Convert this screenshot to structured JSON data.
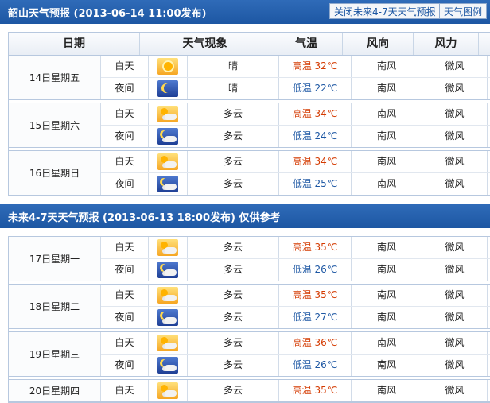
{
  "bar1": {
    "title": "韶山天气预报 (2013-06-14  11:00发布)",
    "btn_close": "关闭未来4-7天天气预报",
    "btn_chart": "天气图例"
  },
  "headers": [
    "日期",
    "天气现象",
    "气温",
    "风向",
    "风力"
  ],
  "part_day": "白天",
  "part_night": "夜间",
  "temp_high": "高温",
  "temp_low": "低温",
  "bar2": {
    "title": "未来4-7天天气预报 (2013-06-13 18:00发布)   仅供参考"
  },
  "forecast": [
    {
      "date": "14日星期五",
      "day": {
        "icon": "sunny-icon",
        "weather": "晴",
        "temp": "32℃",
        "wind_dir": "南风",
        "wind_power": "微风"
      },
      "night": {
        "icon": "clear-night-icon",
        "weather": "晴",
        "temp": "22℃",
        "wind_dir": "南风",
        "wind_power": "微风"
      }
    },
    {
      "date": "15日星期六",
      "day": {
        "icon": "partly-cloudy-icon",
        "weather": "多云",
        "temp": "34℃",
        "wind_dir": "南风",
        "wind_power": "微风"
      },
      "night": {
        "icon": "partly-cloudy-night-icon",
        "weather": "多云",
        "temp": "24℃",
        "wind_dir": "南风",
        "wind_power": "微风"
      }
    },
    {
      "date": "16日星期日",
      "day": {
        "icon": "partly-cloudy-icon",
        "weather": "多云",
        "temp": "34℃",
        "wind_dir": "南风",
        "wind_power": "微风"
      },
      "night": {
        "icon": "partly-cloudy-night-icon",
        "weather": "多云",
        "temp": "25℃",
        "wind_dir": "南风",
        "wind_power": "微风"
      }
    }
  ],
  "forecast2": [
    {
      "date": "17日星期一",
      "day": {
        "icon": "partly-cloudy-icon",
        "weather": "多云",
        "temp": "35℃",
        "wind_dir": "南风",
        "wind_power": "微风"
      },
      "night": {
        "icon": "partly-cloudy-night-icon",
        "weather": "多云",
        "temp": "26℃",
        "wind_dir": "南风",
        "wind_power": "微风"
      }
    },
    {
      "date": "18日星期二",
      "day": {
        "icon": "partly-cloudy-icon",
        "weather": "多云",
        "temp": "35℃",
        "wind_dir": "南风",
        "wind_power": "微风"
      },
      "night": {
        "icon": "partly-cloudy-night-icon",
        "weather": "多云",
        "temp": "27℃",
        "wind_dir": "南风",
        "wind_power": "微风"
      }
    },
    {
      "date": "19日星期三",
      "day": {
        "icon": "partly-cloudy-icon",
        "weather": "多云",
        "temp": "36℃",
        "wind_dir": "南风",
        "wind_power": "微风"
      },
      "night": {
        "icon": "partly-cloudy-night-icon",
        "weather": "多云",
        "temp": "26℃",
        "wind_dir": "南风",
        "wind_power": "微风"
      }
    },
    {
      "date": "20日星期四",
      "day": {
        "icon": "partly-cloudy-icon",
        "weather": "多云",
        "temp": "35℃",
        "wind_dir": "南风",
        "wind_power": "微风"
      }
    }
  ],
  "colors": {
    "bar": "#1d57a3",
    "hot": "#d43a00",
    "cold": "#1d57a3"
  }
}
